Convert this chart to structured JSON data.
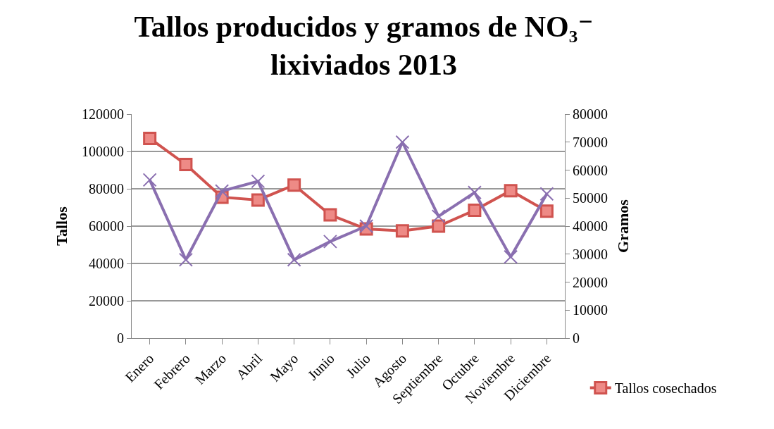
{
  "chart_data": {
    "type": "line",
    "title": "Tallos producidos y gramos de NO₃⁻\nlixiviados 2013",
    "ylabel": "Tallos",
    "y2label": "Gramos",
    "categories": [
      "Enero",
      "Febrero",
      "Marzo",
      "Abril",
      "Mayo",
      "Junio",
      "Julio",
      "Agosto",
      "Septiembre",
      "Octubre",
      "Noviembre",
      "Diciembre"
    ],
    "series": [
      {
        "name": "Tallos cosechados",
        "color": "#d0534f",
        "marker": "square",
        "values": [
          107000,
          93000,
          75500,
          74000,
          82000,
          66000,
          58500,
          57500,
          60000,
          68500,
          79000,
          68000
        ]
      },
      {
        "color": "#8a6fb0",
        "marker": "cross",
        "axis": "y2",
        "values": [
          56500,
          28000,
          52500,
          56000,
          28000,
          34500,
          40000,
          70000,
          43500,
          52000,
          29000,
          51500
        ]
      }
    ],
    "ylim": [
      0,
      120000
    ],
    "yticks": [
      0,
      20000,
      40000,
      60000,
      80000,
      100000,
      120000
    ],
    "y2lim": [
      0,
      80000
    ],
    "y2ticks": [
      0,
      10000,
      20000,
      30000,
      40000,
      50000,
      60000,
      70000,
      80000
    ],
    "grid": "y",
    "legend": "bottom right"
  }
}
